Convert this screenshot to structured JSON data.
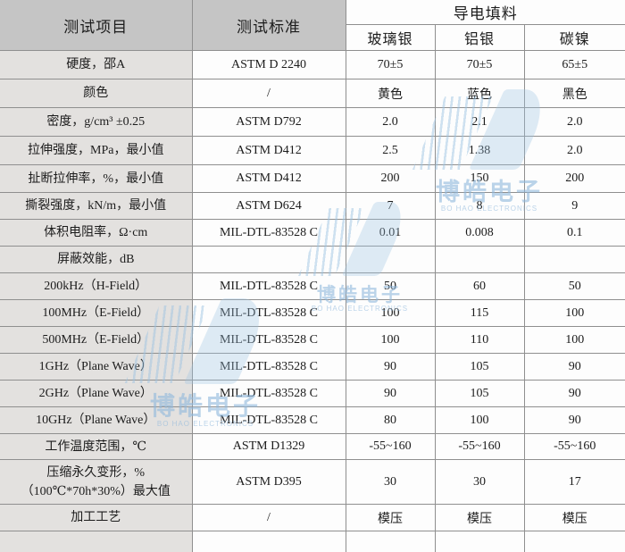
{
  "table": {
    "header": {
      "col_test_item": "测试项目",
      "col_test_standard": "测试标准",
      "col_filler_group": "导电填料",
      "fillers": [
        "玻璃银",
        "铝银",
        "碳镍"
      ]
    },
    "rows": [
      {
        "label": "硬度，邵A",
        "standard": "ASTM D 2240",
        "values": [
          "70±5",
          "70±5",
          "65±5"
        ]
      },
      {
        "label": "颜色",
        "standard": "/",
        "values": [
          "黄色",
          "蓝色",
          "黑色"
        ]
      },
      {
        "label": "密度，g/cm³ ±0.25",
        "standard": "ASTM D792",
        "values": [
          "2.0",
          "2.1",
          "2.0"
        ]
      },
      {
        "label": "拉伸强度，MPa，最小值",
        "standard": "ASTM D412",
        "values": [
          "2.5",
          "1.38",
          "2.0"
        ]
      },
      {
        "label": "扯断拉伸率，%，最小值",
        "standard": "ASTM D412",
        "values": [
          "200",
          "150",
          "200"
        ]
      },
      {
        "label": "撕裂强度，kN/m，最小值",
        "standard": "ASTM D624",
        "values": [
          "7",
          "8",
          "9"
        ]
      },
      {
        "label": "体积电阻率，Ω·cm",
        "standard": "MIL-DTL-83528 C",
        "values": [
          "0.01",
          "0.008",
          "0.1"
        ]
      },
      {
        "label": "屏蔽效能，dB",
        "standard": "",
        "values": [
          "",
          "",
          ""
        ]
      },
      {
        "label": "200kHz（H-Field）",
        "standard": "MIL-DTL-83528 C",
        "values": [
          "50",
          "60",
          "50"
        ]
      },
      {
        "label": "100MHz（E-Field）",
        "standard": "MIL-DTL-83528 C",
        "values": [
          "100",
          "115",
          "100"
        ]
      },
      {
        "label": "500MHz（E-Field）",
        "standard": "MIL-DTL-83528 C",
        "values": [
          "100",
          "110",
          "100"
        ]
      },
      {
        "label": "1GHz（Plane Wave）",
        "standard": "MIL-DTL-83528 C",
        "values": [
          "90",
          "105",
          "90"
        ]
      },
      {
        "label": "2GHz（Plane Wave）",
        "standard": "MIL-DTL-83528 C",
        "values": [
          "90",
          "105",
          "90"
        ]
      },
      {
        "label": "10GHz（Plane Wave）",
        "standard": "MIL-DTL-83528 C",
        "values": [
          "80",
          "100",
          "90"
        ]
      },
      {
        "label": "工作温度范围，℃",
        "standard": "ASTM D1329",
        "values": [
          "-55~160",
          "-55~160",
          "-55~160"
        ]
      },
      {
        "label": "压缩永久变形，%\n（100℃*70h*30%）最大值",
        "standard": "ASTM D395",
        "values": [
          "30",
          "30",
          "17"
        ]
      },
      {
        "label": "加工工艺",
        "standard": "/",
        "values": [
          "模压",
          "模压",
          "模压"
        ]
      },
      {
        "label": "",
        "standard": "",
        "values": [
          "",
          "",
          ""
        ]
      }
    ]
  },
  "watermark": {
    "brand_cn": "博皓电子",
    "brand_en": "BO HAO ELECTRONICS",
    "color": "#9cc3e2"
  },
  "colors": {
    "header_bg": "#c5c5c5",
    "label_col_bg": "#e3e1df",
    "cell_bg": "#fdfdfd",
    "border": "#8f8f8f"
  }
}
